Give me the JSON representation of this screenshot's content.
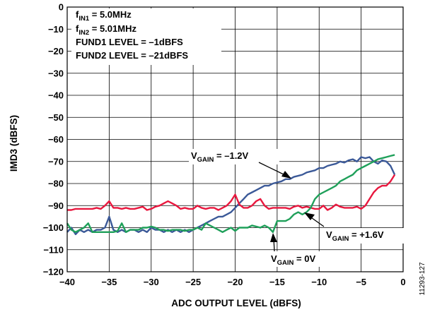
{
  "figure_id": "11293-127",
  "chart_data": {
    "type": "line",
    "xlabel": "ADC OUTPUT LEVEL (dBFS)",
    "ylabel": "IMD3 (dBFS)",
    "xlim": [
      -40,
      0
    ],
    "ylim": [
      -120,
      0
    ],
    "xticks": [
      -40,
      -35,
      -30,
      -25,
      -20,
      -15,
      -10,
      -5,
      0
    ],
    "yticks": [
      0,
      -10,
      -20,
      -30,
      -40,
      -50,
      -60,
      -70,
      -80,
      -90,
      -100,
      -110,
      -120
    ],
    "grid": true,
    "legend_box": [
      {
        "text": "f",
        "sub": "IN1",
        "tail": " = 5.0MHz"
      },
      {
        "text": "f",
        "sub": "IN2",
        "tail": " = 5.01MHz"
      },
      {
        "text": "FUND1 LEVEL = –1dBFS",
        "sub": "",
        "tail": ""
      },
      {
        "text": "FUND2 LEVEL = –21dBFS",
        "sub": "",
        "tail": ""
      }
    ],
    "annotations": [
      {
        "text": "V",
        "sub": "GAIN",
        "tail": " = –1.2V",
        "series": "blue"
      },
      {
        "text": "V",
        "sub": "GAIN",
        "tail": " = +1.6V",
        "series": "red"
      },
      {
        "text": "V",
        "sub": "GAIN",
        "tail": " = 0V",
        "series": "green"
      }
    ],
    "series": [
      {
        "color": "#3b5998",
        "x": [
          -40,
          -39.5,
          -39,
          -38.5,
          -38,
          -37.5,
          -37,
          -36.5,
          -36,
          -35.5,
          -35,
          -34.5,
          -34,
          -33.5,
          -33,
          -32.5,
          -32,
          -31.5,
          -31,
          -30.5,
          -30,
          -29.5,
          -29,
          -28.5,
          -28,
          -27.5,
          -27,
          -26.5,
          -26,
          -25.5,
          -25,
          -24.5,
          -24,
          -23.5,
          -23,
          -22.5,
          -22,
          -21.5,
          -21,
          -20.5,
          -20,
          -19.5,
          -19,
          -18.5,
          -18,
          -17.5,
          -17,
          -16.5,
          -16,
          -15.5,
          -15,
          -14.5,
          -14,
          -13.5,
          -13,
          -12.5,
          -12,
          -11.5,
          -11,
          -10.5,
          -10,
          -9.5,
          -9,
          -8.5,
          -8,
          -7.5,
          -7,
          -6.5,
          -6,
          -5.5,
          -5,
          -4.5,
          -4,
          -3.5,
          -3,
          -2.5,
          -2,
          -1.5,
          -1
        ],
        "y": [
          -102,
          -100,
          -103,
          -101,
          -102,
          -101,
          -102,
          -101,
          -101,
          -100,
          -95,
          -101,
          -102,
          -101,
          -102,
          -101,
          -101,
          -102,
          -101,
          -102,
          -100,
          -101,
          -101,
          -102,
          -101,
          -102,
          -101,
          -102,
          -101,
          -102,
          -101,
          -100,
          -99,
          -98,
          -97,
          -96,
          -95,
          -95,
          -94,
          -93,
          -91,
          -89,
          -87,
          -85,
          -84,
          -83,
          -82,
          -81,
          -81,
          -80,
          -79.5,
          -79,
          -78,
          -78,
          -77,
          -76.5,
          -76,
          -75,
          -74.5,
          -74,
          -73,
          -73,
          -72,
          -71.5,
          -71,
          -70,
          -70.5,
          -69.5,
          -69,
          -70,
          -68,
          -68.5,
          -68,
          -70,
          -71,
          -69.5,
          -70,
          -72,
          -76
        ]
      },
      {
        "color": "#e8173e",
        "x": [
          -40,
          -39.5,
          -39,
          -38.5,
          -38,
          -37.5,
          -37,
          -36.5,
          -36,
          -35.5,
          -35,
          -34.5,
          -34,
          -33.5,
          -33,
          -32.5,
          -32,
          -31.5,
          -31,
          -30.5,
          -30,
          -29.5,
          -29,
          -28.5,
          -28,
          -27.5,
          -27,
          -26.5,
          -26,
          -25.5,
          -25,
          -24.5,
          -24,
          -23.5,
          -23,
          -22.5,
          -22,
          -21.5,
          -21,
          -20.5,
          -20,
          -19.5,
          -19,
          -18.5,
          -18,
          -17.5,
          -17,
          -16.5,
          -16,
          -15.5,
          -15,
          -14.5,
          -14,
          -13.5,
          -13,
          -12.5,
          -12,
          -11.5,
          -11,
          -10.5,
          -10,
          -9.5,
          -9,
          -8.5,
          -8,
          -7.5,
          -7,
          -6.5,
          -6,
          -5.5,
          -5,
          -4.5,
          -4,
          -3.5,
          -3,
          -2.5,
          -2,
          -1.5,
          -1
        ],
        "y": [
          -92,
          -92,
          -91.5,
          -91.5,
          -91.5,
          -91.5,
          -91.5,
          -91,
          -91.5,
          -90,
          -88,
          -91,
          -91,
          -91.5,
          -91,
          -91.5,
          -91.5,
          -91,
          -90.5,
          -92,
          -91.5,
          -90.5,
          -90,
          -89,
          -88,
          -89,
          -90,
          -91.5,
          -91,
          -91.5,
          -91.5,
          -90,
          -91,
          -91.5,
          -91,
          -91,
          -92,
          -91,
          -90,
          -88,
          -85,
          -89.5,
          -91,
          -91,
          -90,
          -88,
          -87,
          -90,
          -91.5,
          -91,
          -91,
          -91,
          -91,
          -91.5,
          -90.5,
          -90,
          -91,
          -90.5,
          -91,
          -91.5,
          -91.5,
          -90,
          -92,
          -91,
          -89.5,
          -90.5,
          -91,
          -91,
          -91,
          -90.5,
          -91.5,
          -90,
          -87,
          -84,
          -82,
          -81,
          -81,
          -79,
          -76
        ]
      },
      {
        "color": "#1fa05a",
        "x": [
          -40,
          -39.5,
          -39,
          -38.5,
          -38,
          -37.5,
          -37,
          -36.5,
          -36,
          -35.5,
          -35,
          -34.5,
          -34,
          -33.5,
          -33,
          -32.5,
          -32,
          -31.5,
          -31,
          -30.5,
          -30,
          -29.5,
          -29,
          -28.5,
          -28,
          -27.5,
          -27,
          -26.5,
          -26,
          -25.5,
          -25,
          -24.5,
          -24,
          -23.5,
          -23,
          -22.5,
          -22,
          -21.5,
          -21,
          -20.5,
          -20,
          -19.5,
          -19,
          -18.5,
          -18,
          -17.5,
          -17,
          -16.5,
          -16,
          -15.5,
          -15,
          -14.5,
          -14,
          -13.5,
          -13,
          -12.5,
          -12,
          -11.5,
          -11,
          -10.5,
          -10,
          -9.5,
          -9,
          -8.5,
          -8,
          -7.5,
          -7,
          -6.5,
          -6,
          -5.5,
          -5,
          -4.5,
          -4,
          -3.5,
          -3,
          -2.5,
          -2,
          -1.5,
          -1
        ],
        "y": [
          -98,
          -101,
          -102,
          -101,
          -100,
          -98,
          -102,
          -102,
          -102,
          -102,
          -102,
          -102,
          -101.5,
          -98,
          -102,
          -101,
          -101,
          -101,
          -100,
          -100,
          -99.5,
          -100,
          -101,
          -101,
          -101.5,
          -101,
          -101,
          -101,
          -101.5,
          -101,
          -101,
          -100,
          -101,
          -98,
          -99,
          -100,
          -101,
          -102,
          -101,
          -100,
          -101.5,
          -100,
          -100,
          -100,
          -99,
          -99.5,
          -100,
          -99,
          -100,
          -102,
          -97,
          -97,
          -97,
          -96,
          -94,
          -93,
          -94,
          -93,
          -91,
          -87,
          -85,
          -84,
          -83,
          -82,
          -81,
          -79,
          -78,
          -77,
          -76,
          -74,
          -73,
          -72,
          -71,
          -70,
          -69,
          -68.5,
          -68,
          -67.5,
          -67
        ]
      }
    ]
  }
}
